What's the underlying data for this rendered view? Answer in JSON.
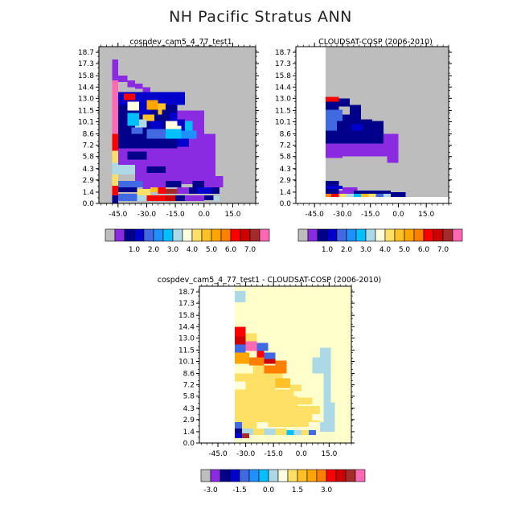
{
  "main_title": "NH Pacific Stratus ANN",
  "colors": {
    "missing": "#bdbdbd",
    "frame": "#000000"
  },
  "chart_data": [
    {
      "type": "heatmap",
      "title": "cospdev_cam5_4_77_test1",
      "x_ticks": [
        "-45.0",
        "-30.0",
        "-15.0",
        "0.0",
        "15.0"
      ],
      "y_ticks": [
        "0.0",
        "1.4",
        "2.9",
        "4.3",
        "5.8",
        "7.2",
        "8.6",
        "10.1",
        "11.5",
        "13.0",
        "14.4",
        "15.8",
        "17.3",
        "18.7"
      ],
      "xlim": [
        -55,
        27
      ],
      "ylim": [
        0,
        19.4
      ],
      "palette": [
        "#bdbdbd",
        "#8a2be2",
        "#00008b",
        "#0000cd",
        "#4169e1",
        "#1e90ff",
        "#00bfff",
        "#add8e6",
        "#ffffe0",
        "#ffe066",
        "#ffc125",
        "#ffa500",
        "#ff7f00",
        "#ff0000",
        "#cd0000",
        "#a52a2a",
        "#ff69b4"
      ],
      "colorbar_labels": [
        "1.0",
        "2.0",
        "3.0",
        "4.0",
        "5.0",
        "6.0",
        "7.0"
      ],
      "colorbar_label_slots": [
        3,
        5,
        7,
        9,
        11,
        13,
        15
      ]
    },
    {
      "type": "heatmap",
      "title": "CLOUDSAT-COSP (2006-2010)",
      "x_ticks": [
        "-45.0",
        "-30.0",
        "-15.0",
        "0.0",
        "15.0"
      ],
      "y_ticks": [
        "0.0",
        "1.4",
        "2.9",
        "4.3",
        "5.8",
        "7.2",
        "8.6",
        "10.1",
        "11.5",
        "13.0",
        "14.4",
        "15.8",
        "17.3",
        "18.7"
      ],
      "xlim": [
        -55,
        27
      ],
      "ylim": [
        0,
        19.4
      ],
      "palette": [
        "#bdbdbd",
        "#8a2be2",
        "#00008b",
        "#0000cd",
        "#4169e1",
        "#1e90ff",
        "#00bfff",
        "#add8e6",
        "#ffffe0",
        "#ffe066",
        "#ffc125",
        "#ffa500",
        "#ff7f00",
        "#ff0000",
        "#cd0000",
        "#a52a2a",
        "#ff69b4"
      ],
      "colorbar_labels": [
        "1.0",
        "2.0",
        "3.0",
        "4.0",
        "5.0",
        "6.0",
        "7.0"
      ],
      "colorbar_label_slots": [
        3,
        5,
        7,
        9,
        11,
        13,
        15
      ]
    },
    {
      "type": "heatmap",
      "title": "cospdev_cam5_4_77_test1 - CLOUDSAT-COSP (2006-2010)",
      "x_ticks": [
        "-45.0",
        "-30.0",
        "-15.0",
        "0.0",
        "15.0"
      ],
      "y_ticks": [
        "0.0",
        "1.4",
        "2.9",
        "4.3",
        "5.8",
        "7.2",
        "8.6",
        "10.1",
        "11.5",
        "13.0",
        "14.4",
        "15.8",
        "17.3",
        "18.7"
      ],
      "xlim": [
        -55,
        27
      ],
      "ylim": [
        0,
        19.4
      ],
      "palette": [
        "#bdbdbd",
        "#8a2be2",
        "#00008b",
        "#0000cd",
        "#4169e1",
        "#1e90ff",
        "#00bfff",
        "#add8e6",
        "#ffffe0",
        "#ffe066",
        "#ffc125",
        "#ffa500",
        "#ff7f00",
        "#ff0000",
        "#cd0000",
        "#a52a2a",
        "#ff69b4"
      ],
      "colorbar_labels": [
        "-3.0",
        "-1.5",
        "0.0",
        "1.5",
        "3.0"
      ],
      "colorbar_label_slots": [
        1,
        4,
        7,
        10,
        13
      ]
    }
  ]
}
